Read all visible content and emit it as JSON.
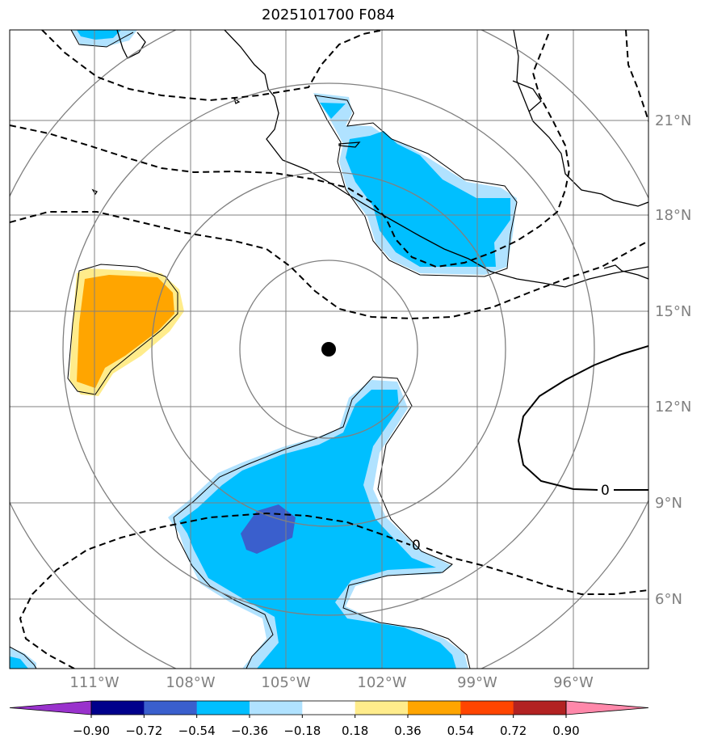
{
  "title": "2025101700 F084",
  "lat_labels": [
    "21°N",
    "18°N",
    "15°N",
    "12°N",
    "9°N",
    "6°N"
  ],
  "lon_labels": [
    "111°W",
    "108°W",
    "105°W",
    "102°W",
    "99°W",
    "96°W"
  ],
  "colorbar": {
    "ticks": [
      "−0.90",
      "−0.72",
      "−0.54",
      "−0.36",
      "−0.18",
      "0.18",
      "0.36",
      "0.54",
      "0.72",
      "0.90"
    ],
    "colors": [
      "#9932CC",
      "#00008B",
      "#3A5FCD",
      "#00BFFF",
      "#B0E2FF",
      "#FFFFFF",
      "#FFEC8B",
      "#FFA500",
      "#FF4500",
      "#B22222",
      "#FF88AA"
    ]
  },
  "contour_labels": [
    "0",
    "0"
  ],
  "center_marker": "storm-center"
}
